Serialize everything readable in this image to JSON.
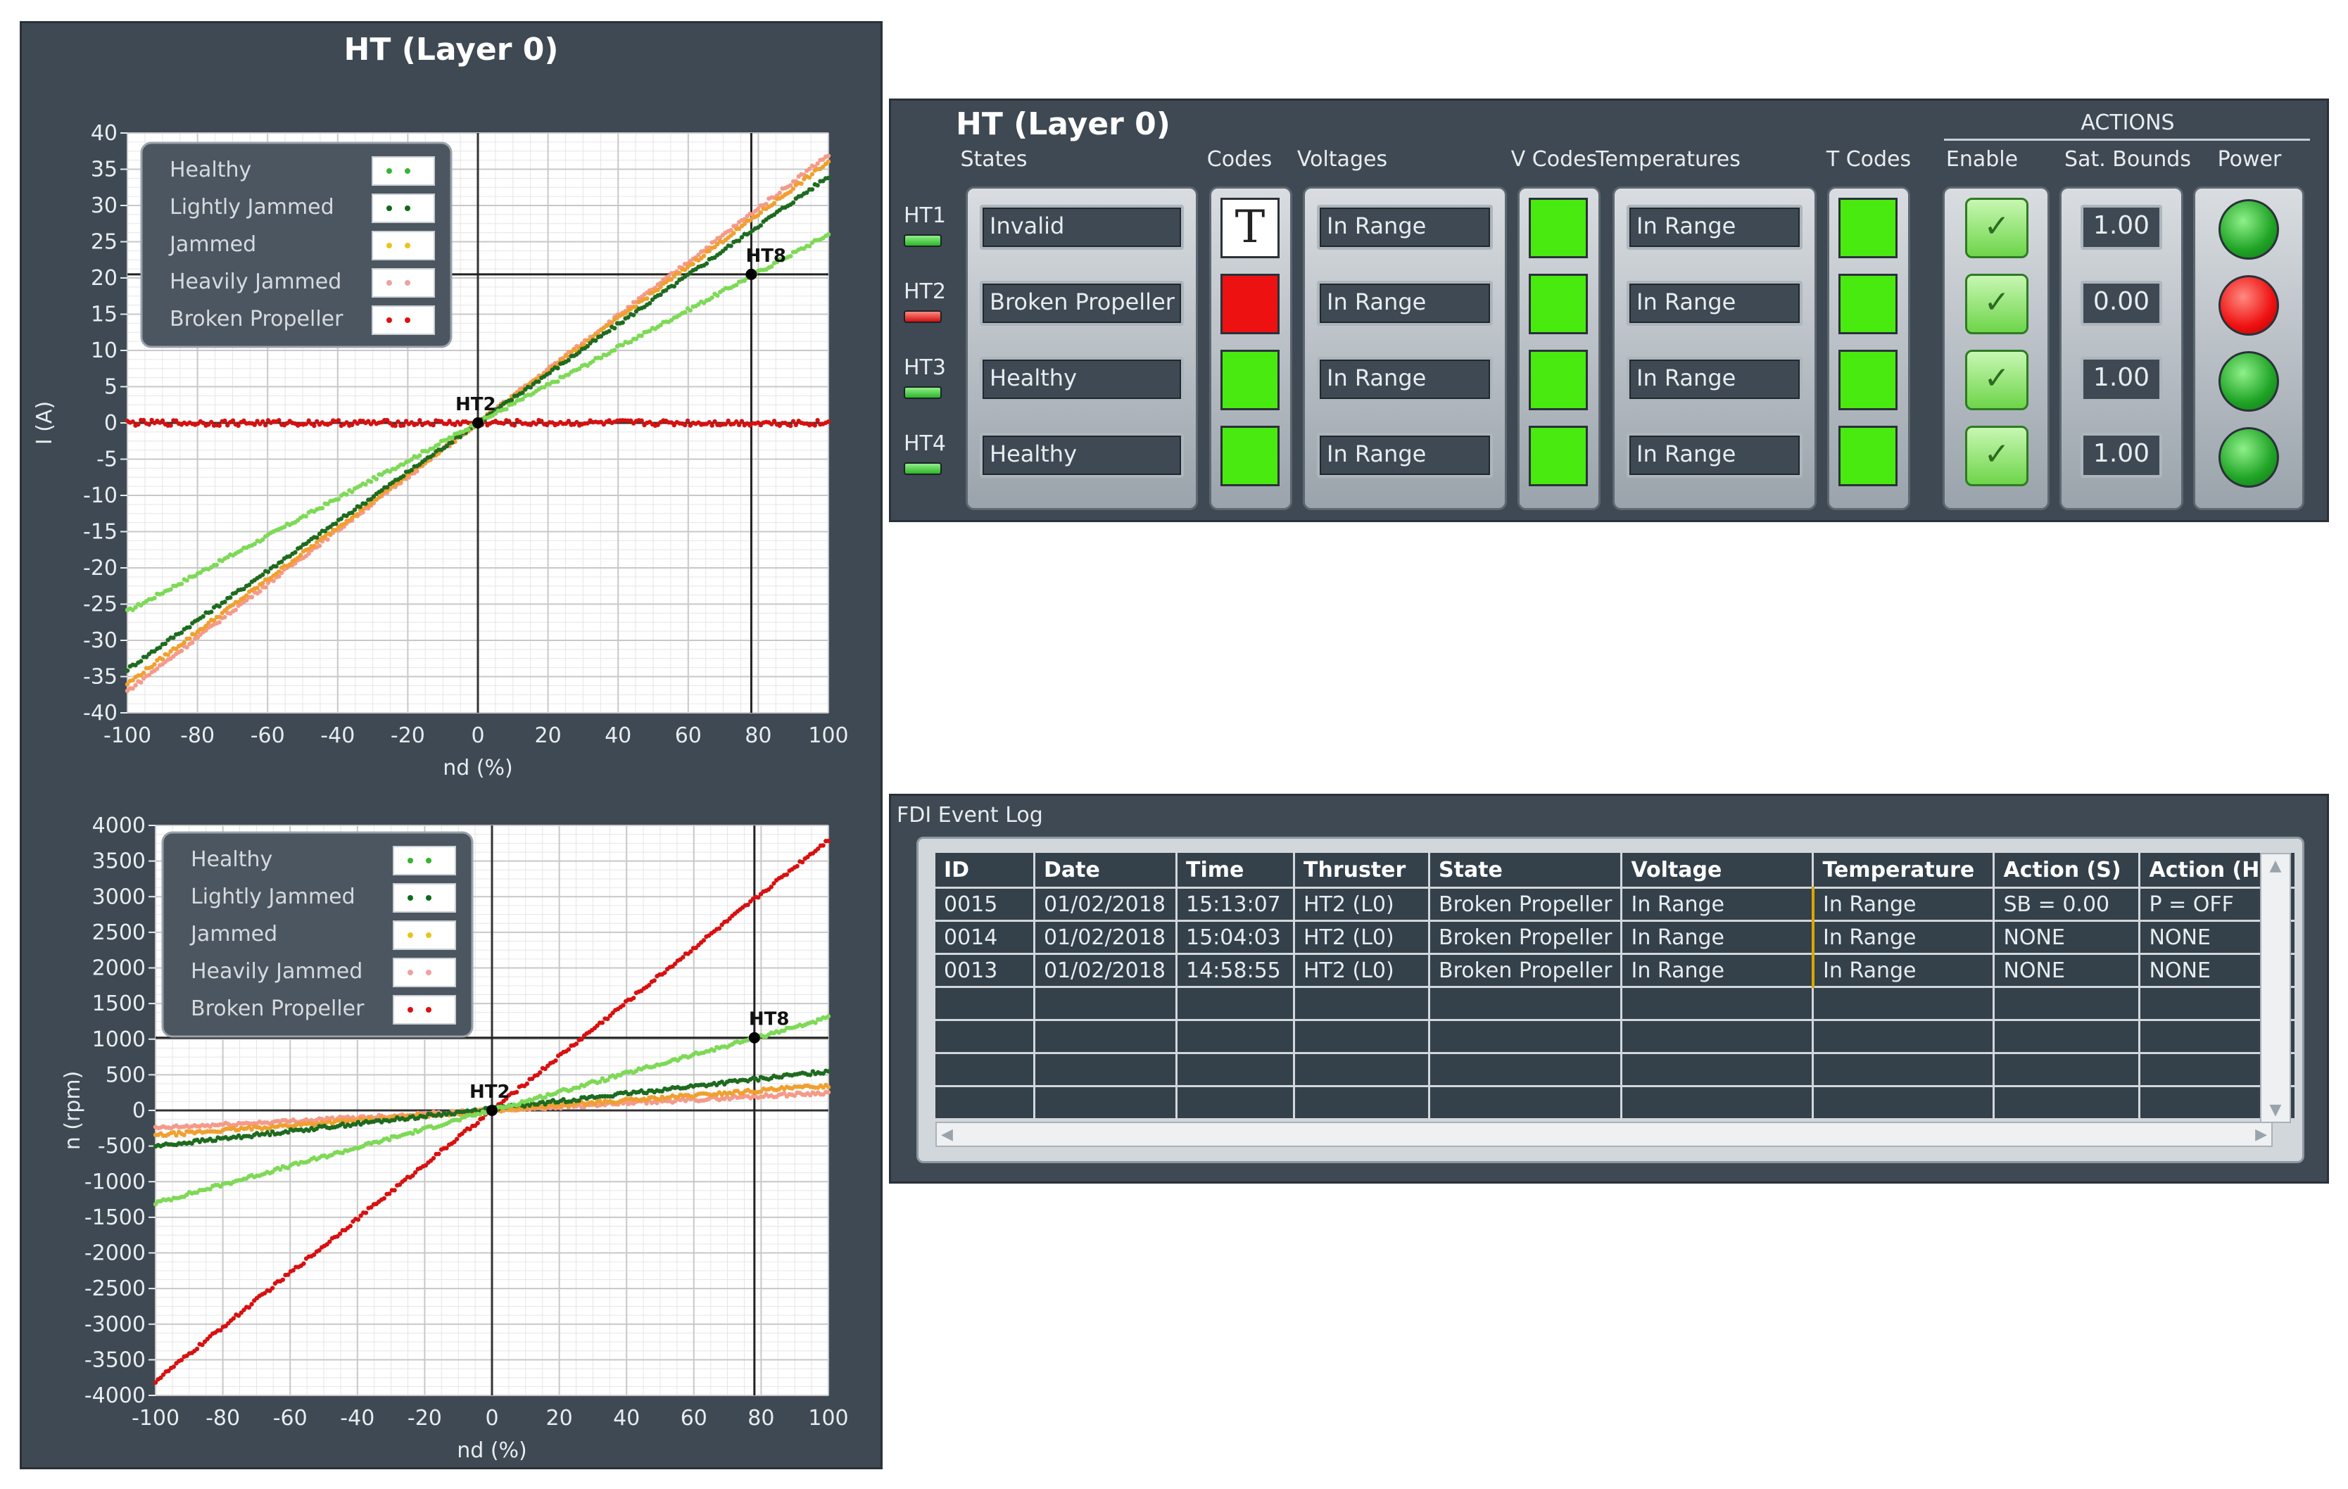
{
  "left_panel": {
    "title": "HT (Layer 0)"
  },
  "legend_swatches": {
    "Healthy": "#36b532",
    "Lightly Jammed": "#0f6b1c",
    "Jammed": "#e8c51a",
    "Heavily Jammed": "#f0a0a0",
    "Broken Propeller": "#e01010"
  },
  "chart_data": [
    {
      "type": "scatter",
      "title": "",
      "xlabel": "nd (%)",
      "ylabel": "I (A)",
      "xlim": [
        -100,
        100
      ],
      "ylim": [
        -40,
        40
      ],
      "xticks": [
        -100,
        -80,
        -60,
        -40,
        -20,
        0,
        20,
        40,
        60,
        80,
        100
      ],
      "yticks": [
        -40,
        -35,
        -30,
        -25,
        -20,
        -15,
        -10,
        -5,
        0,
        5,
        10,
        15,
        20,
        25,
        30,
        35,
        40
      ],
      "grid": true,
      "legend_position": "top-left",
      "series": [
        {
          "name": "Healthy",
          "x": [
            -100,
            100
          ],
          "y": [
            -26,
            26
          ],
          "color": "#7ed957"
        },
        {
          "name": "Lightly Jammed",
          "x": [
            -100,
            100
          ],
          "y": [
            -34,
            34
          ],
          "color": "#1e6b1f"
        },
        {
          "name": "Jammed",
          "x": [
            -100,
            100
          ],
          "y": [
            -36,
            36
          ],
          "color": "#f0a030"
        },
        {
          "name": "Heavily Jammed",
          "x": [
            -100,
            100
          ],
          "y": [
            -37,
            37
          ],
          "color": "#f59a8a"
        },
        {
          "name": "Broken Propeller",
          "x": [
            -100,
            100
          ],
          "y": [
            0,
            0
          ],
          "color": "#d81010"
        }
      ],
      "annotations": [
        {
          "label": "HT8",
          "x": 78,
          "y": 20.5
        },
        {
          "label": "HT2",
          "x": 0,
          "y": 0
        }
      ]
    },
    {
      "type": "scatter",
      "title": "",
      "xlabel": "nd (%)",
      "ylabel": "n (rpm)",
      "xlim": [
        -100,
        100
      ],
      "ylim": [
        -4000,
        4000
      ],
      "xticks": [
        -100,
        -80,
        -60,
        -40,
        -20,
        0,
        20,
        40,
        60,
        80,
        100
      ],
      "yticks": [
        -4000,
        -3500,
        -3000,
        -2500,
        -2000,
        -1500,
        -1000,
        -500,
        0,
        500,
        1000,
        1500,
        2000,
        2500,
        3000,
        3500,
        4000
      ],
      "grid": true,
      "legend_position": "top-left",
      "series": [
        {
          "name": "Healthy",
          "x": [
            -100,
            100
          ],
          "y": [
            -1300,
            1300
          ],
          "color": "#7ed957"
        },
        {
          "name": "Lightly Jammed",
          "x": [
            -100,
            100
          ],
          "y": [
            -500,
            550
          ],
          "color": "#1e6b1f"
        },
        {
          "name": "Jammed",
          "x": [
            -100,
            100
          ],
          "y": [
            -350,
            350
          ],
          "color": "#f0a030"
        },
        {
          "name": "Heavily Jammed",
          "x": [
            -100,
            100
          ],
          "y": [
            -250,
            250
          ],
          "color": "#f59a8a"
        },
        {
          "name": "Broken Propeller",
          "x": [
            -100,
            100
          ],
          "y": [
            -3800,
            3800
          ],
          "color": "#d81010"
        }
      ],
      "annotations": [
        {
          "label": "HT8",
          "x": 78,
          "y": 1020
        },
        {
          "label": "HT2",
          "x": 0,
          "y": 0
        }
      ]
    }
  ],
  "ht_panel": {
    "title": "HT (Layer 0)",
    "actions_label": "ACTIONS",
    "headers": {
      "states": "States",
      "codes": "Codes",
      "voltages": "Voltages",
      "v_codes": "V Codes",
      "temperatures": "Temperatures",
      "t_codes": "T Codes",
      "enable": "Enable",
      "sat_bounds": "Sat. Bounds",
      "power": "Power"
    },
    "rows": [
      {
        "id": "HT1",
        "led": "green",
        "state": "Invalid",
        "code": "white",
        "code_text": "T",
        "voltage": "In Range",
        "v_code": "green",
        "temperature": "In Range",
        "t_code": "green",
        "enable": "✓",
        "sat": "1.00",
        "power": "green"
      },
      {
        "id": "HT2",
        "led": "red",
        "state": "Broken Propeller",
        "code": "red",
        "code_text": "",
        "voltage": "In Range",
        "v_code": "green",
        "temperature": "In Range",
        "t_code": "green",
        "enable": "✓",
        "sat": "0.00",
        "power": "red"
      },
      {
        "id": "HT3",
        "led": "green",
        "state": "Healthy",
        "code": "green",
        "code_text": "",
        "voltage": "In Range",
        "v_code": "green",
        "temperature": "In Range",
        "t_code": "green",
        "enable": "✓",
        "sat": "1.00",
        "power": "green"
      },
      {
        "id": "HT4",
        "led": "green",
        "state": "Healthy",
        "code": "green",
        "code_text": "",
        "voltage": "In Range",
        "v_code": "green",
        "temperature": "In Range",
        "t_code": "green",
        "enable": "✓",
        "sat": "1.00",
        "power": "green"
      }
    ]
  },
  "event_log": {
    "title": "FDI Event Log",
    "columns": [
      "ID",
      "Date",
      "Time",
      "Thruster",
      "State",
      "Voltage",
      "Temperature",
      "Action (S)",
      "Action (H)"
    ],
    "rows": [
      [
        "0015",
        "01/02/2018",
        "15:13:07",
        "HT2 (L0)",
        "Broken Propeller",
        "In Range",
        "In Range",
        "SB = 0.00",
        "P = OFF"
      ],
      [
        "0014",
        "01/02/2018",
        "15:04:03",
        "HT2 (L0)",
        "Broken Propeller",
        "In Range",
        "In Range",
        "NONE",
        "NONE"
      ],
      [
        "0013",
        "01/02/2018",
        "14:58:55",
        "HT2 (L0)",
        "Broken Propeller",
        "In Range",
        "In Range",
        "NONE",
        "NONE"
      ]
    ],
    "empty_rows": 4
  }
}
